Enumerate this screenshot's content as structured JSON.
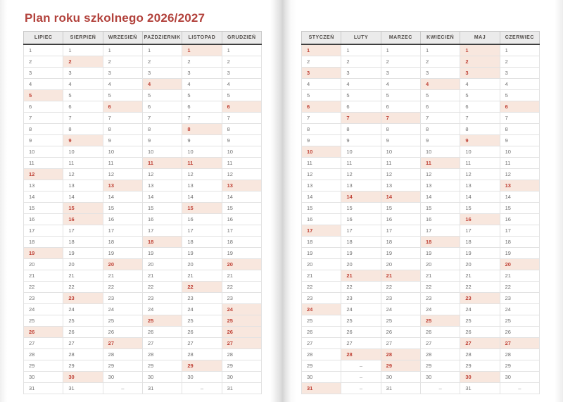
{
  "title": "Plan roku szkolnego 2026/2027",
  "rows": 31,
  "empty_cell_symbol": "–",
  "pages": [
    {
      "side": "left",
      "months": [
        {
          "name": "LIPIEC",
          "days": 31,
          "highlighted": [
            5,
            12,
            19,
            26
          ]
        },
        {
          "name": "SIERPIEŃ",
          "days": 31,
          "highlighted": [
            2,
            9,
            15,
            16,
            23,
            30
          ]
        },
        {
          "name": "WRZESIEŃ",
          "days": 30,
          "highlighted": [
            6,
            13,
            20,
            27
          ]
        },
        {
          "name": "PAŹDZIERNIK",
          "days": 31,
          "highlighted": [
            4,
            11,
            18,
            25
          ]
        },
        {
          "name": "LISTOPAD",
          "days": 30,
          "highlighted": [
            1,
            8,
            11,
            15,
            22,
            29
          ]
        },
        {
          "name": "GRUDZIEŃ",
          "days": 31,
          "highlighted": [
            6,
            13,
            20,
            24,
            25,
            26,
            27
          ]
        }
      ]
    },
    {
      "side": "right",
      "months": [
        {
          "name": "STYCZEŃ",
          "days": 31,
          "highlighted": [
            1,
            3,
            6,
            10,
            17,
            24,
            31
          ]
        },
        {
          "name": "LUTY",
          "days": 28,
          "highlighted": [
            7,
            14,
            21,
            28
          ]
        },
        {
          "name": "MARZEC",
          "days": 31,
          "highlighted": [
            7,
            14,
            21,
            28,
            29
          ]
        },
        {
          "name": "KWIECIEŃ",
          "days": 30,
          "highlighted": [
            4,
            11,
            18,
            25
          ]
        },
        {
          "name": "MAJ",
          "days": 31,
          "highlighted": [
            1,
            2,
            3,
            9,
            16,
            23,
            27,
            30
          ]
        },
        {
          "name": "CZERWIEC",
          "days": 30,
          "highlighted": [
            6,
            13,
            20,
            27
          ]
        }
      ]
    }
  ],
  "colors": {
    "title": "#b2423c",
    "highlight_bg": "#f8e7de",
    "highlight_text": "#bf4135",
    "day_text": "#6f6f6f",
    "header_bg": "#ebebeb",
    "header_text": "#4e4a47",
    "header_border": "#3f3f3f",
    "grid_line": "#e2e2e2"
  }
}
